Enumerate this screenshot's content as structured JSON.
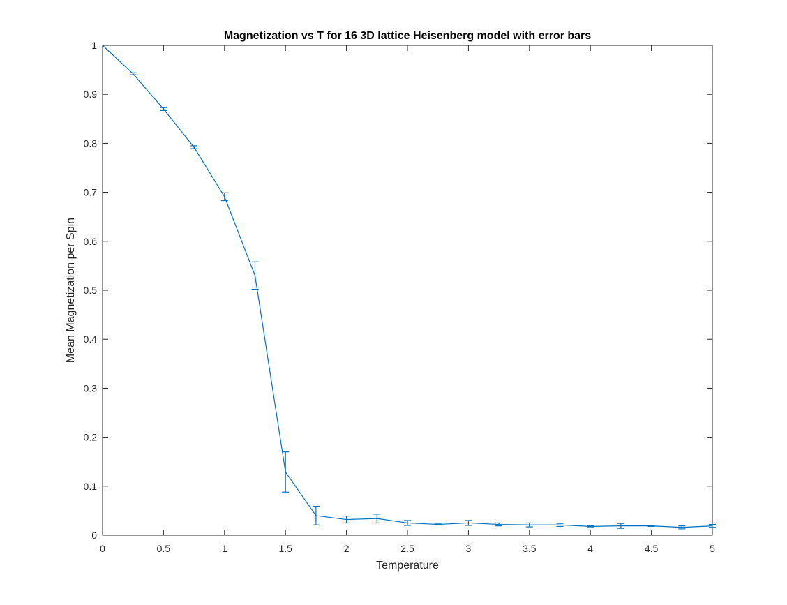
{
  "chart_data": {
    "type": "line",
    "title": "Magnetization vs T for 16 3D lattice Heisenberg model with error bars",
    "xlabel": "Temperature",
    "ylabel": "Mean Magnetization per Spin",
    "xlim": [
      0,
      5
    ],
    "ylim": [
      0,
      1
    ],
    "xticks": [
      "0",
      "0.5",
      "1",
      "1.5",
      "2",
      "2.5",
      "3",
      "3.5",
      "4",
      "4.5",
      "5"
    ],
    "yticks": [
      "0",
      "0.1",
      "0.2",
      "0.3",
      "0.4",
      "0.5",
      "0.6",
      "0.7",
      "0.8",
      "0.9",
      "1"
    ],
    "grid": false,
    "colors": {
      "series": "#0072BD",
      "axes": "#262626"
    },
    "series": [
      {
        "x": [
          0,
          0.25,
          0.5,
          0.75,
          1,
          1.25,
          1.5,
          1.75,
          2,
          2.25,
          2.5,
          2.75,
          3,
          3.25,
          3.5,
          3.75,
          4,
          4.25,
          4.5,
          4.75,
          5
        ],
        "y": [
          1.0,
          0.942,
          0.87,
          0.792,
          0.691,
          0.53,
          0.129,
          0.04,
          0.032,
          0.034,
          0.025,
          0.022,
          0.025,
          0.022,
          0.021,
          0.021,
          0.018,
          0.019,
          0.019,
          0.016,
          0.019
        ],
        "err": [
          0.0,
          0.002,
          0.003,
          0.003,
          0.008,
          0.028,
          0.041,
          0.019,
          0.007,
          0.009,
          0.005,
          0.001,
          0.005,
          0.003,
          0.004,
          0.003,
          0.001,
          0.005,
          0.001,
          0.003,
          0.003
        ]
      }
    ]
  }
}
